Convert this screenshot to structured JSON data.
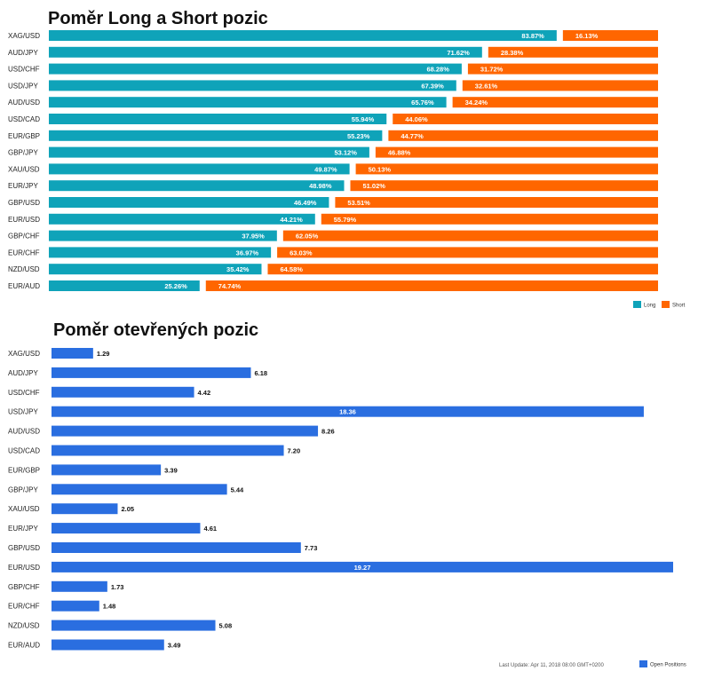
{
  "colors": {
    "long": "#0fa3b9",
    "short": "#ff6600",
    "open": "#2a6ee0",
    "label_text": "#222222",
    "value_on_bar": "#ffffff",
    "value_off_bar": "#111111"
  },
  "chart_data": [
    {
      "type": "bar",
      "orientation": "horizontal",
      "stacked": "percent",
      "title": "Poměr Long a Short pozic",
      "categories": [
        "XAG/USD",
        "AUD/JPY",
        "USD/CHF",
        "USD/JPY",
        "AUD/USD",
        "USD/CAD",
        "EUR/GBP",
        "GBP/JPY",
        "XAU/USD",
        "EUR/JPY",
        "GBP/USD",
        "EUR/USD",
        "GBP/CHF",
        "EUR/CHF",
        "NZD/USD",
        "EUR/AUD"
      ],
      "series": [
        {
          "name": "Long",
          "color_key": "long",
          "values": [
            83.87,
            71.62,
            68.28,
            67.39,
            65.76,
            55.94,
            55.23,
            53.12,
            49.87,
            48.98,
            46.49,
            44.21,
            37.95,
            36.97,
            35.42,
            25.26
          ],
          "labels": [
            "83.87%",
            "71.62%",
            "68.28%",
            "67.39%",
            "65.76%",
            "55.94%",
            "55.23%",
            "53.12%",
            "49.87%",
            "48.98%",
            "46.49%",
            "44.21%",
            "37.95%",
            "36.97%",
            "35.42%",
            "25.26%"
          ]
        },
        {
          "name": "Short",
          "color_key": "short",
          "values": [
            16.13,
            28.38,
            31.72,
            32.61,
            34.24,
            44.06,
            44.77,
            46.88,
            50.13,
            51.02,
            53.51,
            55.79,
            62.05,
            63.03,
            64.58,
            74.74
          ],
          "labels": [
            "16.13%",
            "28.38%",
            "31.72%",
            "32.61%",
            "34.24%",
            "44.06%",
            "44.77%",
            "46.88%",
            "50.13%",
            "51.02%",
            "53.51%",
            "55.79%",
            "62.05%",
            "63.03%",
            "64.58%",
            "74.74%"
          ]
        }
      ],
      "legend": {
        "position": "bottom-right",
        "items": [
          "Long",
          "Short"
        ]
      },
      "grid": false
    },
    {
      "type": "bar",
      "orientation": "horizontal",
      "title": "Poměr otevřených pozic",
      "categories": [
        "XAG/USD",
        "AUD/JPY",
        "USD/CHF",
        "USD/JPY",
        "AUD/USD",
        "USD/CAD",
        "EUR/GBP",
        "GBP/JPY",
        "XAU/USD",
        "EUR/JPY",
        "GBP/USD",
        "EUR/USD",
        "GBP/CHF",
        "EUR/CHF",
        "NZD/USD",
        "EUR/AUD"
      ],
      "series": [
        {
          "name": "Open Positions",
          "color_key": "open",
          "values": [
            1.29,
            6.18,
            4.42,
            18.36,
            8.26,
            7.2,
            3.39,
            5.44,
            2.05,
            4.61,
            7.73,
            19.27,
            1.73,
            1.48,
            5.08,
            3.49
          ],
          "labels": [
            "1.29",
            "6.18",
            "4.42",
            "18.36",
            "8.26",
            "7.20",
            "3.39",
            "5.44",
            "2.05",
            "4.61",
            "7.73",
            "19.27",
            "1.73",
            "1.48",
            "5.08",
            "3.49"
          ]
        }
      ],
      "xlim": [
        0,
        19.27
      ],
      "legend": {
        "position": "bottom-right",
        "items": [
          "Open Positions"
        ]
      },
      "grid": false
    }
  ],
  "footer": {
    "last_update": "Last Update: Apr 11, 2018 08:00 GMT+0200"
  }
}
